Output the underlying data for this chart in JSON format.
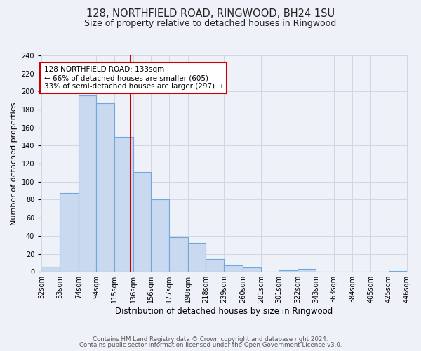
{
  "title": "128, NORTHFIELD ROAD, RINGWOOD, BH24 1SU",
  "subtitle": "Size of property relative to detached houses in Ringwood",
  "xlabel": "Distribution of detached houses by size in Ringwood",
  "ylabel": "Number of detached properties",
  "bin_edges": [
    32,
    53,
    74,
    94,
    115,
    136,
    156,
    177,
    198,
    218,
    239,
    260,
    281,
    301,
    322,
    343,
    363,
    384,
    405,
    425,
    446
  ],
  "bin_labels": [
    "32sqm",
    "53sqm",
    "74sqm",
    "94sqm",
    "115sqm",
    "136sqm",
    "156sqm",
    "177sqm",
    "198sqm",
    "218sqm",
    "239sqm",
    "260sqm",
    "281sqm",
    "301sqm",
    "322sqm",
    "343sqm",
    "363sqm",
    "384sqm",
    "405sqm",
    "425sqm",
    "446sqm"
  ],
  "counts": [
    6,
    87,
    196,
    187,
    150,
    111,
    80,
    38,
    32,
    14,
    7,
    5,
    0,
    2,
    3,
    0,
    0,
    0,
    0,
    1
  ],
  "bar_facecolor": "#c9d9f0",
  "bar_edgecolor": "#6fa8dc",
  "property_line_x": 133,
  "property_line_color": "#cc0000",
  "annotation_line1": "128 NORTHFIELD ROAD: 133sqm",
  "annotation_line2": "← 66% of detached houses are smaller (605)",
  "annotation_line3": "33% of semi-detached houses are larger (297) →",
  "annotation_box_edgecolor": "#cc0000",
  "annotation_box_facecolor": "#ffffff",
  "ylim": [
    0,
    240
  ],
  "yticks": [
    0,
    20,
    40,
    60,
    80,
    100,
    120,
    140,
    160,
    180,
    200,
    220,
    240
  ],
  "grid_color": "#ced6e8",
  "background_color": "#eef2f8",
  "footer_line1": "Contains HM Land Registry data © Crown copyright and database right 2024.",
  "footer_line2": "Contains public sector information licensed under the Open Government Licence v3.0.",
  "title_fontsize": 10.5,
  "subtitle_fontsize": 9,
  "xlabel_fontsize": 8.5,
  "ylabel_fontsize": 8,
  "tick_fontsize": 7,
  "annotation_fontsize": 7.5,
  "footer_fontsize": 6.2
}
